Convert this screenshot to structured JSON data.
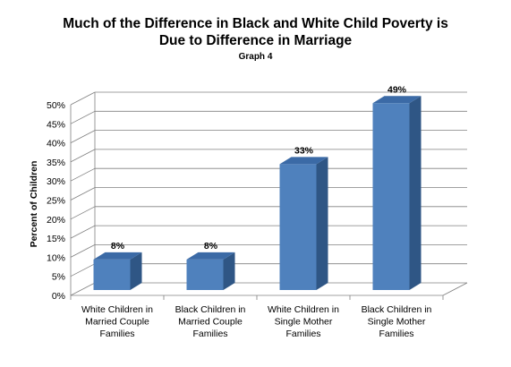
{
  "chart_data": {
    "type": "bar",
    "title_line1": "Much of the Difference in Black and White Child Poverty is",
    "title_line2": "Due to Difference in Marriage",
    "subtitle": "Graph 4",
    "ylabel": "Percent of Children",
    "xlabel": "",
    "categories": [
      [
        "White Children in",
        "Married Couple",
        "Families"
      ],
      [
        "Black Children in",
        "Married Couple",
        "Families"
      ],
      [
        "White Children in",
        "Single Mother",
        "Families"
      ],
      [
        "Black Children in",
        "Single Mother",
        "Families"
      ]
    ],
    "values": [
      8,
      8,
      33,
      49
    ],
    "data_labels": [
      "8%",
      "8%",
      "33%",
      "49%"
    ],
    "ylim": [
      0,
      50
    ],
    "yticks": [
      "0%",
      "5%",
      "10%",
      "15%",
      "20%",
      "25%",
      "30%",
      "35%",
      "40%",
      "45%",
      "50%"
    ],
    "grid": true,
    "legend": "none",
    "colors": {
      "bar_front": "#4F81BD",
      "bar_side": "#2F5685",
      "bar_top": "#3B6AA6",
      "grid": "#808080"
    }
  }
}
